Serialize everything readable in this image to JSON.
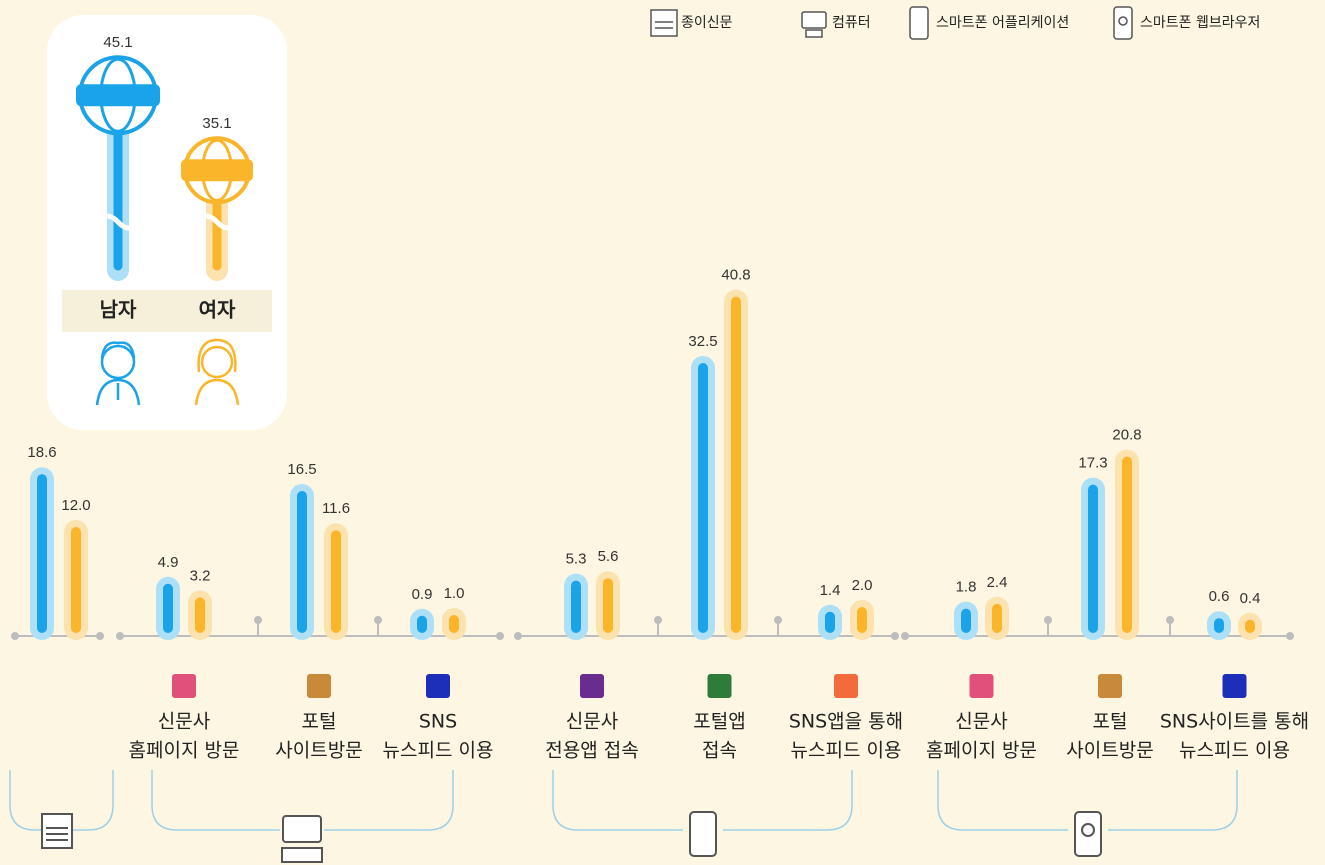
{
  "chart_data": [
    {
      "type": "bar",
      "legend": [
        "종이신문",
        "컴퓨터",
        "스마트폰 어플리케이션",
        "스마트폰 웹브라우저"
      ],
      "categories": [
        null,
        [
          "신문사",
          "홈페이지 방문"
        ],
        [
          "포털",
          "사이트방문"
        ],
        [
          "SNS",
          "뉴스피드 이용"
        ],
        [
          "신문사",
          "전용앱 접속"
        ],
        [
          "포털앱",
          "접속"
        ],
        [
          "SNS앱을 통해",
          "뉴스피드 이용"
        ],
        [
          "신문사",
          "홈페이지 방문"
        ],
        [
          "포털",
          "사이트방문"
        ],
        [
          "SNS사이트를 통해",
          "뉴스피드 이용"
        ]
      ],
      "series": [
        {
          "color": "#1aa3e8",
          "values": [
            18.6,
            4.9,
            16.5,
            0.9,
            5.3,
            32.5,
            1.4,
            1.8,
            17.3,
            0.6
          ],
          "value_labels": [
            "18.6",
            "4.9",
            "16.5",
            "0.9",
            "5.3",
            "32.5",
            "1.4",
            "1.8",
            "17.3",
            "0.6"
          ]
        },
        {
          "color": "#fbb52a",
          "values": [
            12.0,
            3.2,
            11.6,
            1.0,
            5.6,
            40.8,
            2.0,
            2.4,
            20.8,
            0.4
          ],
          "value_labels": [
            "12.0",
            "3.2",
            "11.6",
            "1.0",
            "5.6",
            "40.8",
            "2.0",
            "2.4",
            "20.8",
            "0.4"
          ]
        }
      ]
    },
    {
      "type": "lollipop",
      "series": [
        {
          "name": "남자",
          "color": "#1aa3e8",
          "values": [
            45.1
          ]
        },
        {
          "name": "여자",
          "color": "#fbb52a",
          "values": [
            35.1
          ]
        }
      ]
    }
  ]
}
